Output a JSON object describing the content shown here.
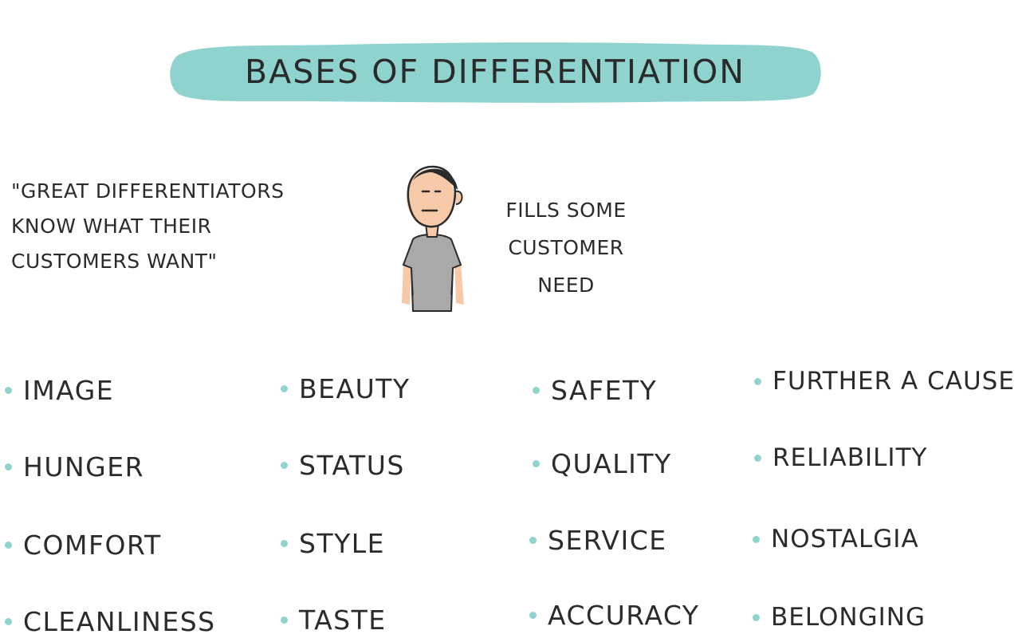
{
  "title": "BASES OF DIFFERENTIATION",
  "colors": {
    "banner": "#8fd3cf",
    "bullet": "#8fd3cf",
    "text": "#2b2b2b",
    "skin": "#f6c9a8",
    "shirt": "#a9a9a9"
  },
  "quote": {
    "lines": [
      "\"GREAT DIFFERENTIATORS",
      "KNOW WHAT THEIR",
      "CUSTOMERS WANT\""
    ]
  },
  "need": {
    "lines": [
      "FILLS SOME",
      "CUSTOMER",
      "NEED"
    ]
  },
  "bases": {
    "columns": [
      [
        "IMAGE",
        "HUNGER",
        "COMFORT",
        "CLEANLINESS"
      ],
      [
        "BEAUTY",
        "STATUS",
        "STYLE",
        "TASTE"
      ],
      [
        "SAFETY",
        "QUALITY",
        "SERVICE",
        "ACCURACY"
      ],
      [
        "FURTHER A CAUSE",
        "RELIABILITY",
        "NOSTALGIA",
        "BELONGING"
      ]
    ]
  },
  "icons": {
    "person": "person-illustration-icon"
  }
}
